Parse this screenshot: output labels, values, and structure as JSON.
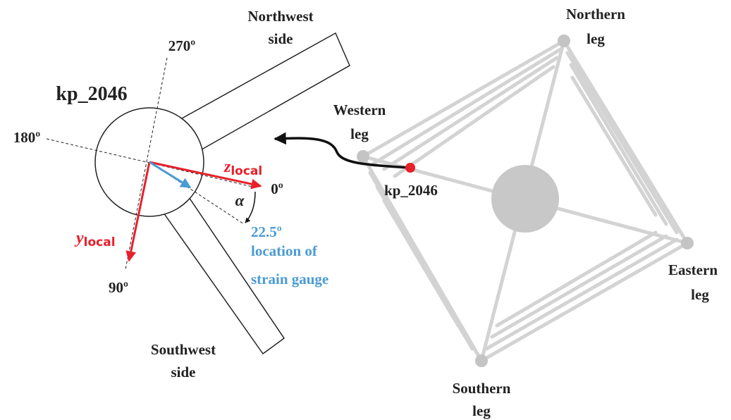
{
  "detail": {
    "title": "kp_2046",
    "angles": [
      "270º",
      "180º",
      "0º",
      "90º"
    ],
    "sides": [
      [
        "Northwest",
        "side"
      ],
      [
        "Southwest",
        "side"
      ]
    ],
    "axes": [
      {
        "symbol": "z",
        "subscript": "local"
      },
      {
        "symbol": "y",
        "subscript": "local"
      }
    ],
    "alpha": "α",
    "gauge": {
      "angle": "22.5º",
      "lines": [
        "location of",
        "strain gauge"
      ]
    }
  },
  "structure": {
    "node": "kp_2046",
    "legs": [
      [
        "Northern",
        "leg"
      ],
      [
        "Western",
        "leg"
      ],
      [
        "Eastern",
        "leg"
      ],
      [
        "Southern",
        "leg"
      ]
    ]
  }
}
